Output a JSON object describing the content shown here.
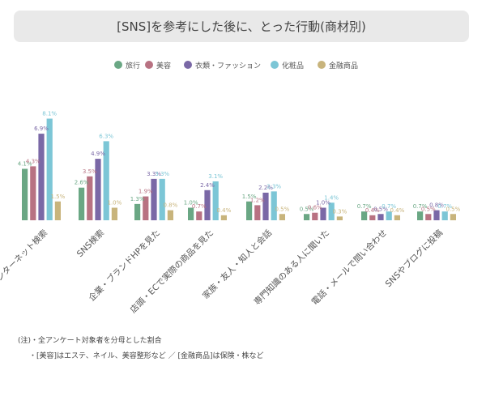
{
  "chart_data": {
    "type": "bar",
    "title": "[SNS]を参考にした後に、とった行動(商材別)",
    "categories": [
      "インターネット検索",
      "SNS検索",
      "企業・ブランドHPを見た",
      "店頭・ECで実際の商品を見た",
      "家族・友人・知人と会話",
      "専門知識のある人に聞いた",
      "電話・メールで問い合わせ",
      "SNSやブログに投稿"
    ],
    "series": [
      {
        "name": "旅行",
        "color": "#6aa784",
        "values": [
          4.1,
          2.6,
          1.3,
          1.0,
          1.5,
          0.5,
          0.7,
          0.7
        ]
      },
      {
        "name": "美容",
        "color": "#b87282",
        "values": [
          4.3,
          3.5,
          1.9,
          0.7,
          1.2,
          0.6,
          0.4,
          0.5
        ]
      },
      {
        "name": "衣類・ファッション",
        "color": "#7a68a6",
        "values": [
          6.9,
          4.9,
          3.3,
          2.4,
          2.2,
          1.0,
          0.5,
          0.8
        ]
      },
      {
        "name": "化粧品",
        "color": "#7cc6d6",
        "values": [
          8.1,
          6.3,
          3.3,
          3.1,
          2.3,
          1.4,
          0.7,
          0.7
        ]
      },
      {
        "name": "金融商品",
        "color": "#c8b47c",
        "values": [
          1.5,
          1.0,
          0.8,
          0.4,
          0.5,
          0.3,
          0.4,
          0.5
        ]
      }
    ],
    "value_suffix": "%",
    "ylim": [
      0,
      9
    ],
    "grid": false,
    "legend_position": "top"
  },
  "notes": [
    "(注)・全アンケート対象者を分母とした割合",
    "・[美容]はエステ、ネイル、美容整形など ／ [金融商品]は保険・株など"
  ]
}
